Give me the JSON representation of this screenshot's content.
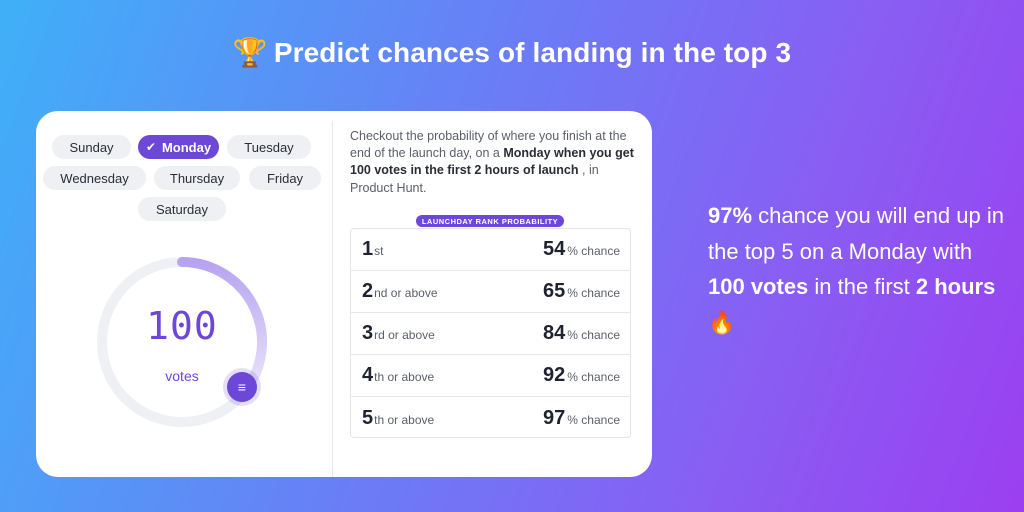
{
  "headline": {
    "icon": "trophy-icon",
    "text": "Predict chances of landing in the top 3"
  },
  "days": [
    {
      "label": "Sunday",
      "selected": false
    },
    {
      "label": "Monday",
      "selected": true
    },
    {
      "label": "Tuesday",
      "selected": false
    },
    {
      "label": "Wednesday",
      "selected": false
    },
    {
      "label": "Thursday",
      "selected": false
    },
    {
      "label": "Friday",
      "selected": false
    },
    {
      "label": "Saturday",
      "selected": false
    }
  ],
  "votes": {
    "value": "100",
    "unit": "votes",
    "progress": 0.36,
    "handle_icon": "menu-icon"
  },
  "description": {
    "part1": "Checkout the probability of where you finish at the end of the launch day, on a ",
    "bold": "Monday when you get 100 votes in the first 2 hours of launch",
    "part2": " , in Product Hunt."
  },
  "table": {
    "badge": "LAUNCHDAY RANK PROBABILITY",
    "rows": [
      {
        "rank": "1",
        "suffix": "st",
        "percent": "54",
        "unit": "% chance"
      },
      {
        "rank": "2",
        "suffix": "nd or above",
        "percent": "65",
        "unit": "% chance"
      },
      {
        "rank": "3",
        "suffix": "rd or above",
        "percent": "84",
        "unit": "% chance"
      },
      {
        "rank": "4",
        "suffix": "th or above",
        "percent": "92",
        "unit": "% chance"
      },
      {
        "rank": "5",
        "suffix": "th or above",
        "percent": "97",
        "unit": "% chance"
      }
    ]
  },
  "summary": {
    "pct": "97%",
    "t1": " chance you will end up in the top 5 on a Monday with ",
    "votes": "100 votes",
    "t2": " in the first ",
    "hours": "2 hours",
    "emoji": "🔥",
    "emoji_icon": "fire-icon"
  },
  "colors": {
    "accent": "#6c47d8",
    "ring_track": "#eef0f3",
    "ring_fill_start": "#b7a3f0",
    "ring_fill_end": "#ece6fb"
  }
}
